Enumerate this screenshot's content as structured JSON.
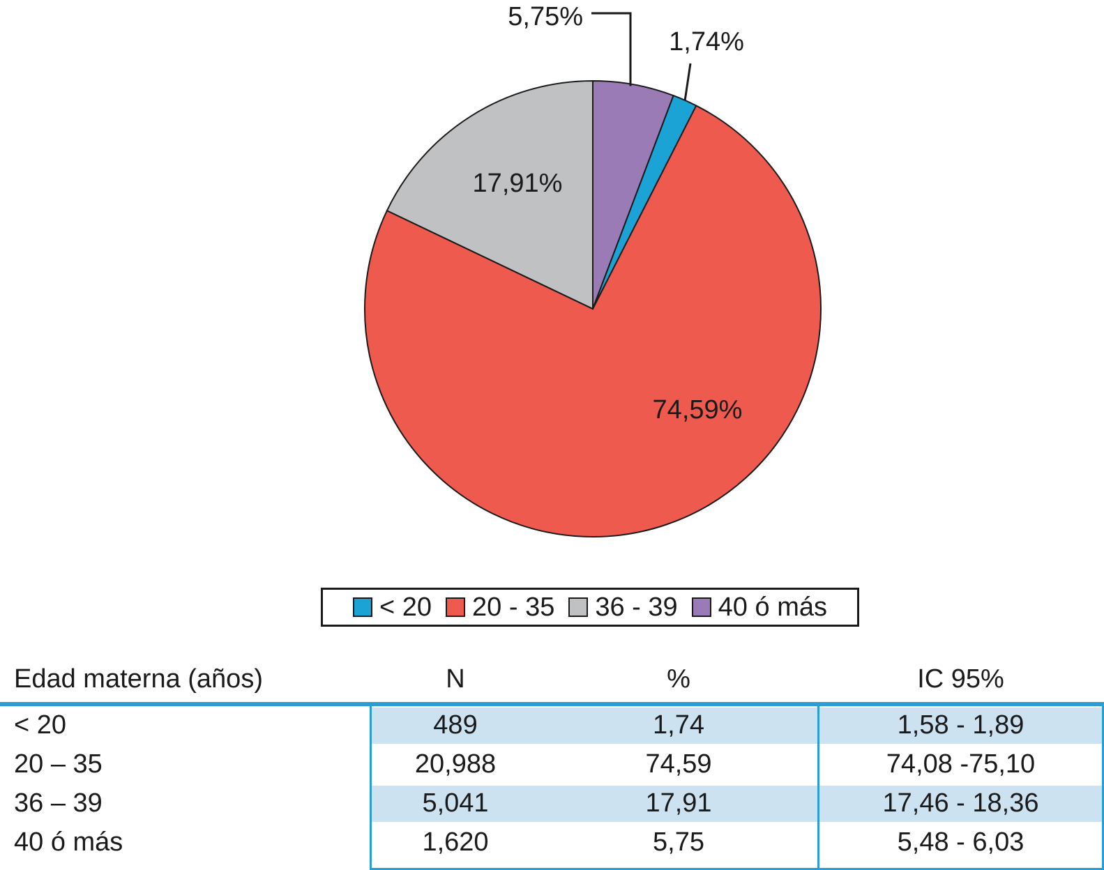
{
  "colors": {
    "lt20": "#1aa3d4",
    "age20_35": "#ef5a4f",
    "age36_39": "#bfc1c2",
    "age40plus": "#9b7bb5",
    "outline": "#1a1a1a",
    "table_rule": "#2a9ed2",
    "table_band": "#cce2f0"
  },
  "chart_data": {
    "type": "pie",
    "title": "",
    "slices": [
      {
        "label": "< 20",
        "value": 1.74,
        "value_label": "1,74%",
        "color": "#1aa3d4",
        "label_placement": "outside"
      },
      {
        "label": "20 - 35",
        "value": 74.59,
        "value_label": "74,59%",
        "color": "#ef5a4f",
        "label_placement": "inside"
      },
      {
        "label": "36 - 39",
        "value": 17.91,
        "value_label": "17,91%",
        "color": "#bfc1c2",
        "label_placement": "inside"
      },
      {
        "label": "40 ó más",
        "value": 5.75,
        "value_label": "5,75%",
        "color": "#9b7bb5",
        "label_placement": "outside"
      }
    ],
    "start_angle": "12 o'clock",
    "direction": "clockwise",
    "legend_placement": "bottom"
  },
  "legend": {
    "items": [
      {
        "label": "< 20",
        "color": "#1aa3d4"
      },
      {
        "label": "20 - 35",
        "color": "#ef5a4f"
      },
      {
        "label": "36 - 39",
        "color": "#bfc1c2"
      },
      {
        "label": "40 ó más",
        "color": "#9b7bb5"
      }
    ]
  },
  "table": {
    "headers": [
      "Edad materna (años)",
      "N",
      "%",
      "IC 95%"
    ],
    "rows": [
      {
        "age": "< 20",
        "n": "489",
        "pct": "1,74",
        "ci": "1,58 - 1,89",
        "shaded": true
      },
      {
        "age": "20 – 35",
        "n": "20,988",
        "pct": "74,59",
        "ci": "74,08 -75,10",
        "shaded": false
      },
      {
        "age": "36 – 39",
        "n": "5,041",
        "pct": "17,91",
        "ci": "17,46 - 18,36",
        "shaded": true
      },
      {
        "age": "40 ó más",
        "n": "1,620",
        "pct": "5,75",
        "ci": "5,48 - 6,03",
        "shaded": false
      }
    ]
  }
}
